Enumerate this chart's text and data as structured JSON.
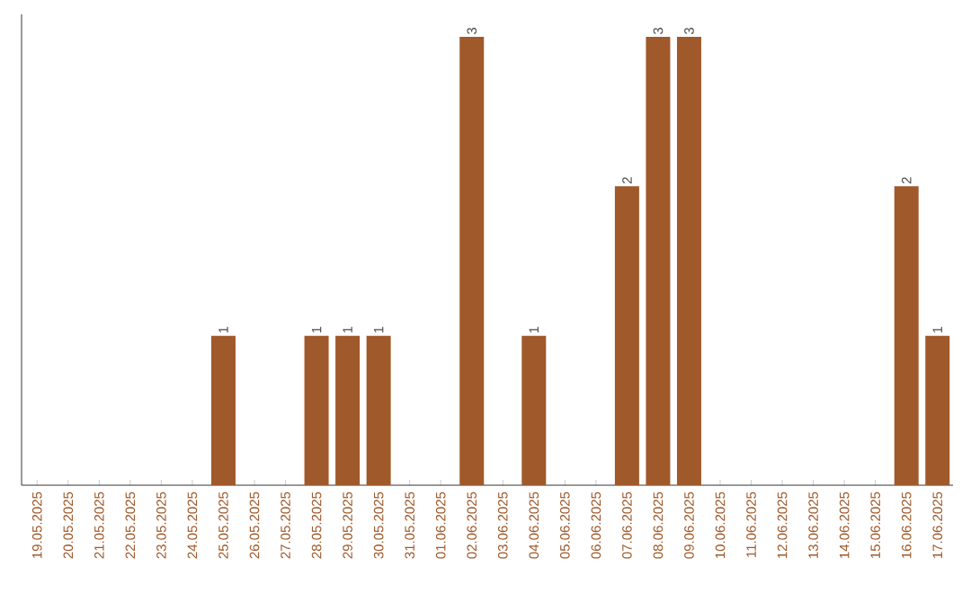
{
  "chart_data": {
    "type": "bar",
    "categories": [
      "19.05.2025",
      "20.05.2025",
      "21.05.2025",
      "22.05.2025",
      "23.05.2025",
      "24.05.2025",
      "25.05.2025",
      "26.05.2025",
      "27.05.2025",
      "28.05.2025",
      "29.05.2025",
      "30.05.2025",
      "31.05.2025",
      "01.06.2025",
      "02.06.2025",
      "03.06.2025",
      "04.06.2025",
      "05.06.2025",
      "06.06.2025",
      "07.06.2025",
      "08.06.2025",
      "09.06.2025",
      "10.06.2025",
      "11.06.2025",
      "12.06.2025",
      "13.06.2025",
      "14.06.2025",
      "15.06.2025",
      "16.06.2025",
      "17.06.2025"
    ],
    "values": [
      0,
      0,
      0,
      0,
      0,
      0,
      1,
      0,
      0,
      1,
      1,
      1,
      0,
      0,
      3,
      0,
      1,
      0,
      0,
      2,
      3,
      3,
      0,
      0,
      0,
      0,
      0,
      0,
      2,
      1
    ],
    "value_labels": [
      null,
      null,
      null,
      null,
      null,
      null,
      "1",
      null,
      null,
      "1",
      "1",
      "1",
      null,
      null,
      "3",
      null,
      "1",
      null,
      null,
      "2",
      "3",
      "3",
      null,
      null,
      null,
      null,
      null,
      null,
      "2",
      "1"
    ],
    "color": "#a0592a"
  }
}
